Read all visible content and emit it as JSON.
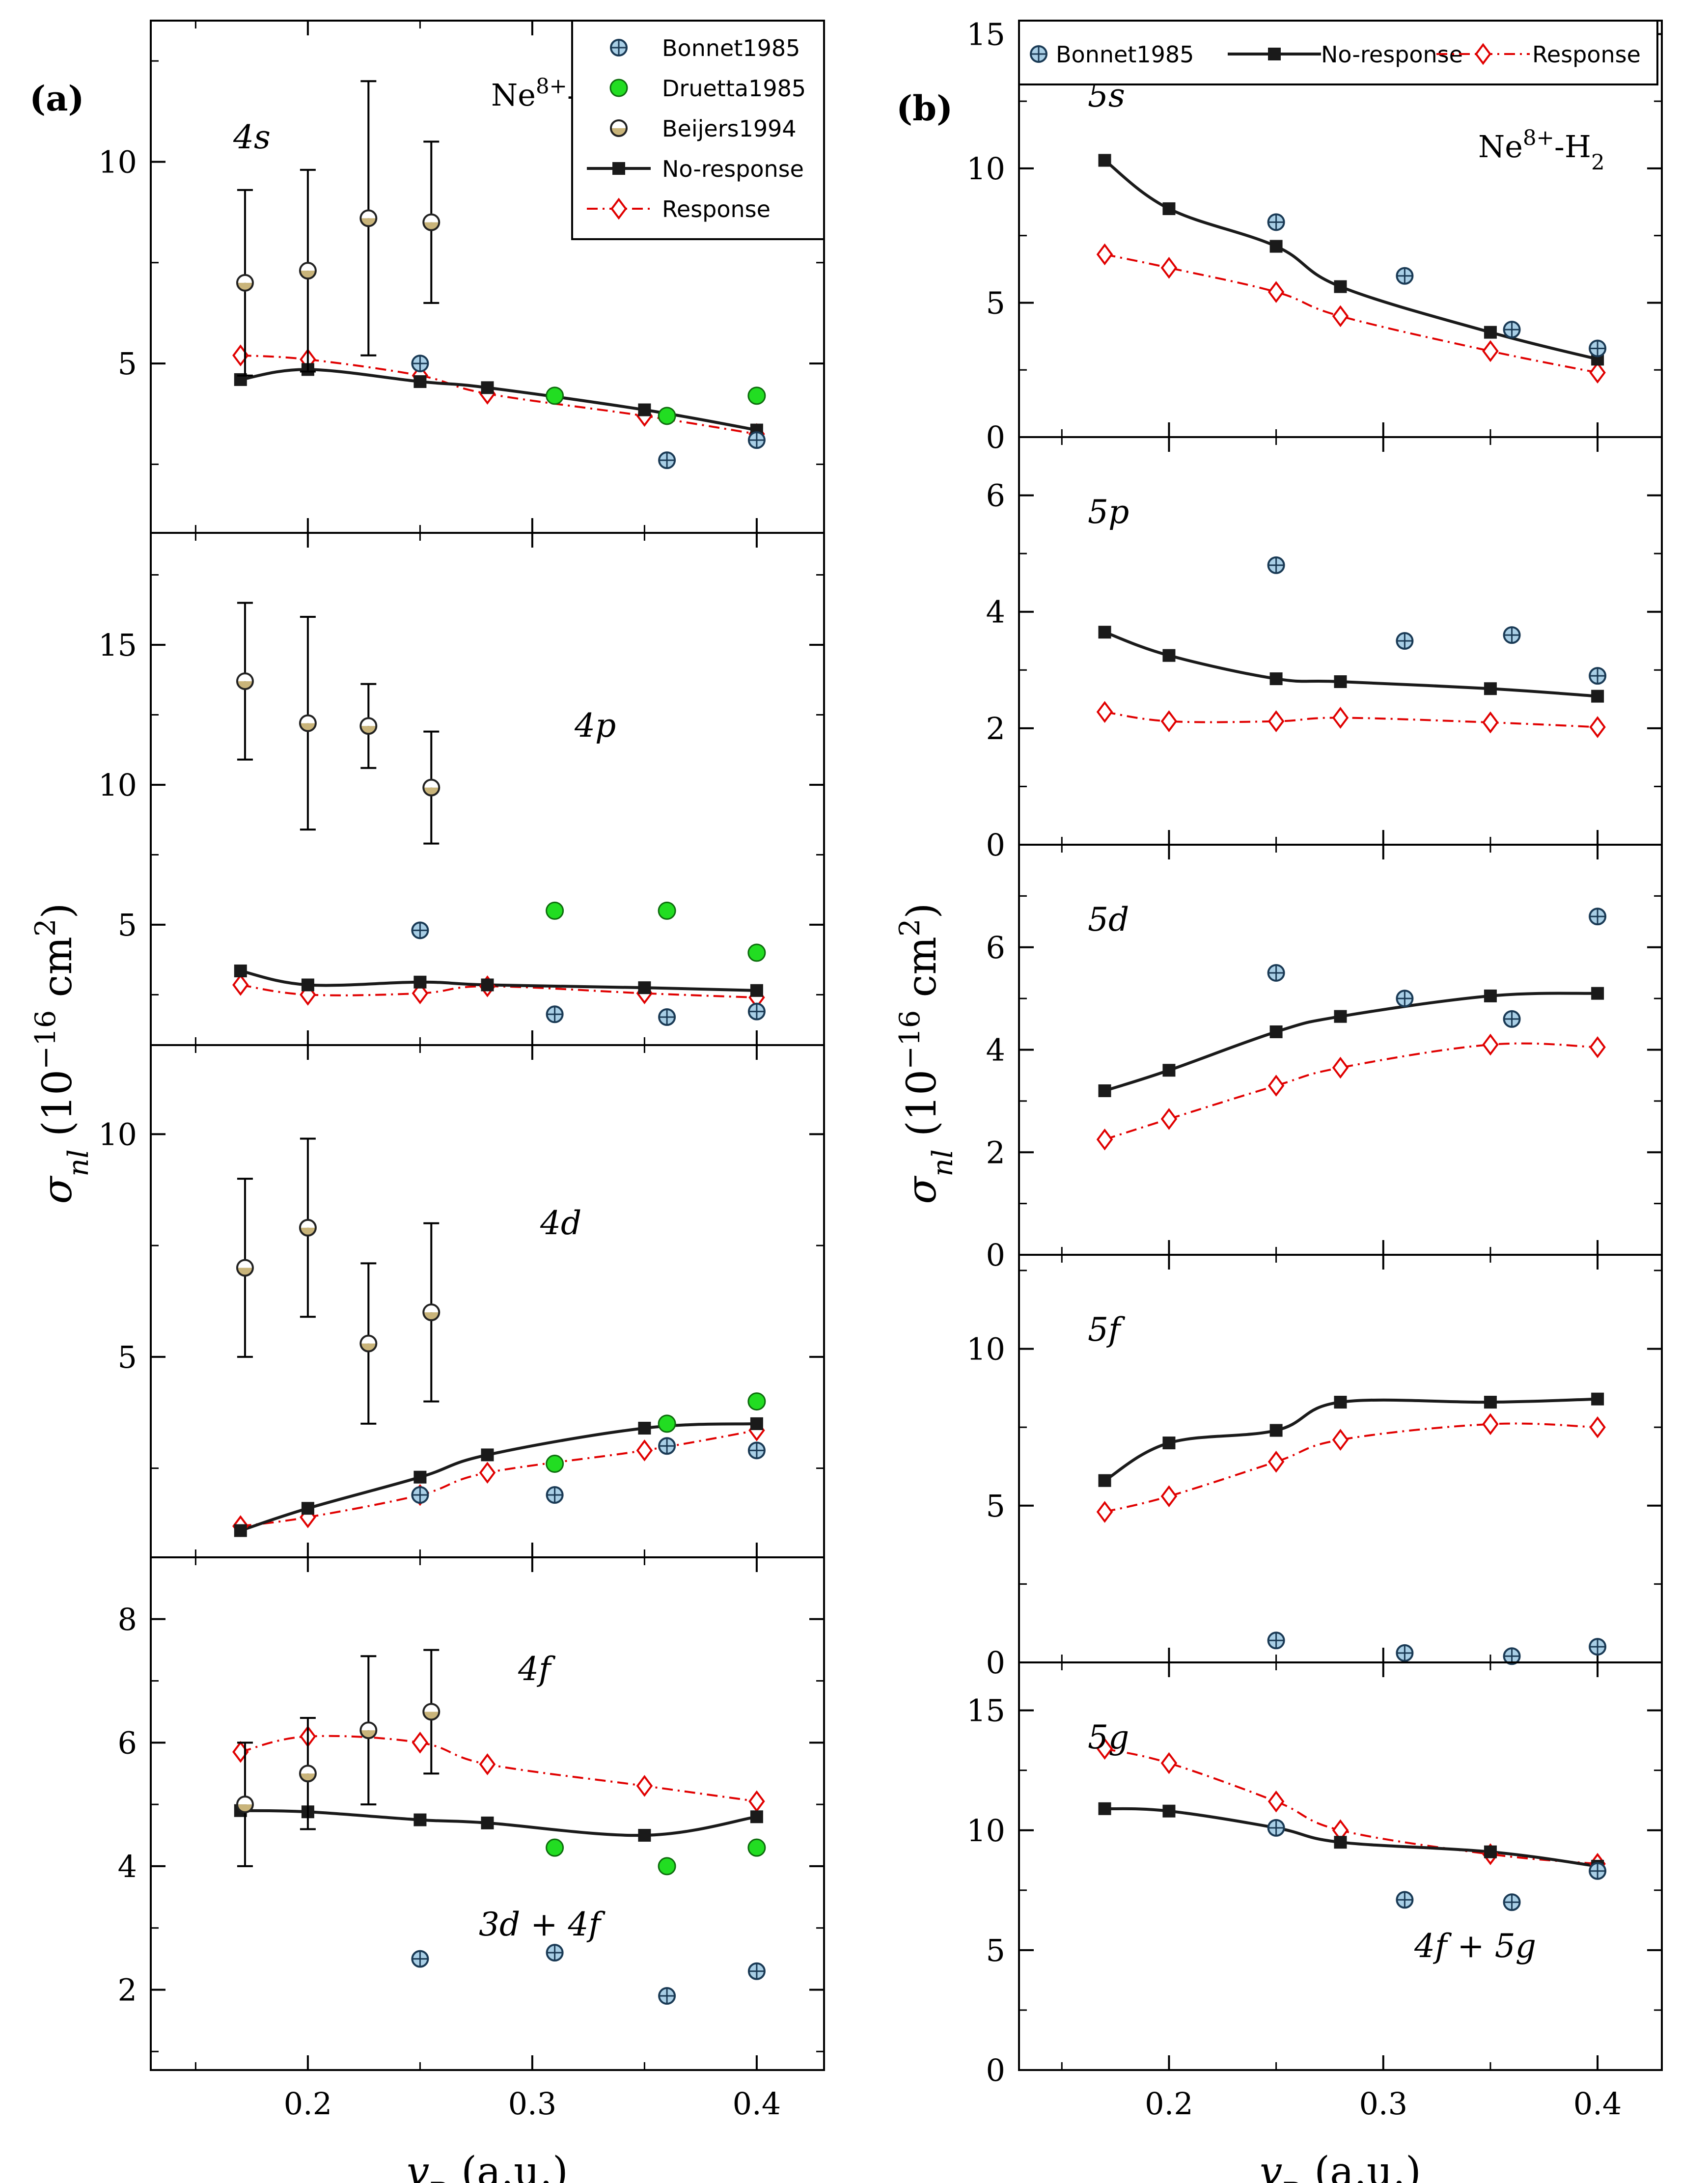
{
  "colors": {
    "no_response": "#1a1a1a",
    "response": "#e00000",
    "bonnet_fill": "#a9cfe6",
    "druetta_fill": "#22dd22",
    "beijers_top": "#ffffff",
    "beijers_bottom": "#c9b47a"
  },
  "axis": {
    "xlabel_main": "v",
    "xlabel_sub": "P",
    "xlabel_unit": " (a.u.)",
    "ylabel_main": "σ",
    "ylabel_sub": "nl",
    "ylabel_unit_open": " (10",
    "ylabel_exp": "−16",
    "ylabel_unit_mid": " cm",
    "ylabel_exp2": "2",
    "ylabel_close": ")"
  },
  "legend_a": [
    "Bonnet1985",
    "Druetta1985",
    "Beijers1994",
    "No-response",
    "Response"
  ],
  "legend_b": [
    "Bonnet1985",
    "No-response",
    "Response"
  ],
  "chart_data": [
    {
      "figure": "(a)",
      "system_base": "Ne",
      "system_sup": "8+",
      "system_tail": "-He",
      "type": "scatter+line",
      "xlabel": "vP (a.u.)",
      "ylabel": "σnl (10−16 cm2)",
      "xlim": [
        0.13,
        0.43
      ],
      "xticks": [
        0.2,
        0.3,
        0.4
      ],
      "panels": [
        {
          "label": "4s",
          "ylim": [
            0.8,
            13.5
          ],
          "yticks": [
            5,
            10
          ],
          "no_response": {
            "x": [
              0.17,
              0.2,
              0.25,
              0.28,
              0.35,
              0.4
            ],
            "y": [
              4.6,
              4.85,
              4.55,
              4.4,
              3.85,
              3.35
            ]
          },
          "response": {
            "x": [
              0.17,
              0.2,
              0.25,
              0.28,
              0.35,
              0.4
            ],
            "y": [
              5.2,
              5.1,
              4.7,
              4.25,
              3.7,
              3.25
            ]
          },
          "bonnet1985": {
            "x": [
              0.25,
              0.36,
              0.4
            ],
            "y": [
              5.0,
              2.6,
              3.1
            ]
          },
          "druetta1985": {
            "x": [
              0.31,
              0.36,
              0.4
            ],
            "y": [
              4.2,
              3.7,
              4.2
            ]
          },
          "beijers1994": {
            "x": [
              0.172,
              0.2,
              0.227,
              0.255
            ],
            "y": [
              7.0,
              7.3,
              8.6,
              8.5
            ],
            "yerr": [
              2.3,
              2.5,
              3.4,
              2.0
            ]
          }
        },
        {
          "label": "4p",
          "ylim": [
            0.7,
            19.0
          ],
          "yticks": [
            5,
            10,
            15
          ],
          "no_response": {
            "x": [
              0.17,
              0.2,
              0.25,
              0.28,
              0.35,
              0.4
            ],
            "y": [
              3.35,
              2.85,
              2.95,
              2.85,
              2.75,
              2.65
            ]
          },
          "response": {
            "x": [
              0.17,
              0.2,
              0.25,
              0.28,
              0.35,
              0.4
            ],
            "y": [
              2.85,
              2.5,
              2.55,
              2.8,
              2.55,
              2.4
            ]
          },
          "bonnet1985": {
            "x": [
              0.25,
              0.31,
              0.36,
              0.4
            ],
            "y": [
              4.8,
              1.8,
              1.7,
              1.9
            ]
          },
          "druetta1985": {
            "x": [
              0.31,
              0.36,
              0.4
            ],
            "y": [
              5.5,
              5.5,
              4.0
            ]
          },
          "beijers1994": {
            "x": [
              0.172,
              0.2,
              0.227,
              0.255
            ],
            "y": [
              13.7,
              12.2,
              12.1,
              9.9
            ],
            "yerr": [
              2.8,
              3.8,
              1.5,
              2.0
            ]
          }
        },
        {
          "label": "4d",
          "ylim": [
            0.5,
            12.0
          ],
          "yticks": [
            5,
            10
          ],
          "no_response": {
            "x": [
              0.17,
              0.2,
              0.25,
              0.28,
              0.35,
              0.4
            ],
            "y": [
              1.1,
              1.6,
              2.3,
              2.8,
              3.4,
              3.5
            ]
          },
          "response": {
            "x": [
              0.17,
              0.2,
              0.25,
              0.28,
              0.35,
              0.4
            ],
            "y": [
              1.2,
              1.4,
              1.9,
              2.4,
              2.9,
              3.35
            ]
          },
          "bonnet1985": {
            "x": [
              0.25,
              0.31,
              0.36,
              0.4
            ],
            "y": [
              1.9,
              1.9,
              3.0,
              2.9
            ]
          },
          "druetta1985": {
            "x": [
              0.31,
              0.36,
              0.4
            ],
            "y": [
              2.6,
              3.5,
              4.0
            ]
          },
          "beijers1994": {
            "x": [
              0.172,
              0.2,
              0.227,
              0.255
            ],
            "y": [
              7.0,
              7.9,
              5.3,
              6.0
            ],
            "yerr": [
              2.0,
              2.0,
              1.8,
              2.0
            ]
          }
        },
        {
          "label": "4f",
          "label2": "3d + 4f",
          "ylim": [
            0.7,
            9.0
          ],
          "yticks": [
            2,
            4,
            6,
            8
          ],
          "no_response": {
            "x": [
              0.17,
              0.2,
              0.25,
              0.28,
              0.35,
              0.4
            ],
            "y": [
              4.9,
              4.88,
              4.75,
              4.7,
              4.5,
              4.8
            ]
          },
          "response": {
            "x": [
              0.17,
              0.2,
              0.25,
              0.28,
              0.35,
              0.4
            ],
            "y": [
              5.85,
              6.1,
              6.0,
              5.65,
              5.3,
              5.05
            ]
          },
          "bonnet1985": {
            "x": [
              0.25,
              0.31,
              0.36,
              0.4
            ],
            "y": [
              2.5,
              2.6,
              1.9,
              2.3
            ]
          },
          "druetta1985": {
            "x": [
              0.31,
              0.36,
              0.4
            ],
            "y": [
              4.3,
              4.0,
              4.3
            ]
          },
          "beijers1994": {
            "x": [
              0.172,
              0.2,
              0.227,
              0.255
            ],
            "y": [
              5.0,
              5.5,
              6.2,
              6.5
            ],
            "yerr": [
              1.0,
              0.9,
              1.2,
              1.0
            ]
          }
        }
      ]
    },
    {
      "figure": "(b)",
      "system_base": "Ne",
      "system_sup": "8+",
      "system_tail": "-H",
      "system_sub": "2",
      "type": "scatter+line",
      "xlabel": "vP (a.u.)",
      "ylabel": "σnl (10−16 cm2)",
      "xlim": [
        0.13,
        0.43
      ],
      "xticks": [
        0.2,
        0.3,
        0.4
      ],
      "panels": [
        {
          "label": "5s",
          "ylim": [
            0,
            15.5
          ],
          "yticks": [
            0,
            5,
            10,
            15
          ],
          "no_response": {
            "x": [
              0.17,
              0.2,
              0.25,
              0.28,
              0.35,
              0.4
            ],
            "y": [
              10.3,
              8.5,
              7.1,
              5.6,
              3.9,
              2.9
            ]
          },
          "response": {
            "x": [
              0.17,
              0.2,
              0.25,
              0.28,
              0.35,
              0.4
            ],
            "y": [
              6.8,
              6.3,
              5.4,
              4.5,
              3.2,
              2.4
            ]
          },
          "bonnet1985": {
            "x": [
              0.25,
              0.31,
              0.36,
              0.4
            ],
            "y": [
              8.0,
              6.0,
              4.0,
              3.3
            ]
          }
        },
        {
          "label": "5p",
          "ylim": [
            0,
            7.0
          ],
          "yticks": [
            0,
            2,
            4,
            6
          ],
          "no_response": {
            "x": [
              0.17,
              0.2,
              0.25,
              0.28,
              0.35,
              0.4
            ],
            "y": [
              3.65,
              3.25,
              2.85,
              2.8,
              2.68,
              2.55
            ]
          },
          "response": {
            "x": [
              0.17,
              0.2,
              0.25,
              0.28,
              0.35,
              0.4
            ],
            "y": [
              2.28,
              2.12,
              2.12,
              2.18,
              2.1,
              2.02
            ]
          },
          "bonnet1985": {
            "x": [
              0.25,
              0.31,
              0.36,
              0.4
            ],
            "y": [
              4.8,
              3.5,
              3.6,
              2.9
            ]
          }
        },
        {
          "label": "5d",
          "ylim": [
            0,
            8.0
          ],
          "yticks": [
            0,
            2,
            4,
            6
          ],
          "no_response": {
            "x": [
              0.17,
              0.2,
              0.25,
              0.28,
              0.35,
              0.4
            ],
            "y": [
              3.2,
              3.6,
              4.35,
              4.65,
              5.05,
              5.1
            ]
          },
          "response": {
            "x": [
              0.17,
              0.2,
              0.25,
              0.28,
              0.35,
              0.4
            ],
            "y": [
              2.25,
              2.65,
              3.3,
              3.65,
              4.1,
              4.05
            ]
          },
          "bonnet1985": {
            "x": [
              0.25,
              0.31,
              0.36,
              0.4
            ],
            "y": [
              5.5,
              5.0,
              4.6,
              6.6
            ]
          }
        },
        {
          "label": "5f",
          "ylim": [
            0,
            13.0
          ],
          "yticks": [
            0,
            5,
            10
          ],
          "no_response": {
            "x": [
              0.17,
              0.2,
              0.25,
              0.28,
              0.35,
              0.4
            ],
            "y": [
              5.8,
              7.0,
              7.4,
              8.3,
              8.3,
              8.4
            ]
          },
          "response": {
            "x": [
              0.17,
              0.2,
              0.25,
              0.28,
              0.35,
              0.4
            ],
            "y": [
              4.8,
              5.3,
              6.4,
              7.1,
              7.6,
              7.5
            ]
          },
          "bonnet1985": {
            "x": [
              0.25,
              0.31,
              0.36,
              0.4
            ],
            "y": [
              0.7,
              0.3,
              0.2,
              0.5
            ]
          }
        },
        {
          "label": "5g",
          "label2": "4f + 5g",
          "ylim": [
            0,
            17.0
          ],
          "yticks": [
            0,
            5,
            10,
            15
          ],
          "no_response": {
            "x": [
              0.17,
              0.2,
              0.25,
              0.28,
              0.35,
              0.4
            ],
            "y": [
              10.9,
              10.8,
              10.1,
              9.5,
              9.1,
              8.5
            ]
          },
          "response": {
            "x": [
              0.17,
              0.2,
              0.25,
              0.28,
              0.35,
              0.4
            ],
            "y": [
              13.4,
              12.8,
              11.2,
              10.0,
              9.0,
              8.6
            ]
          },
          "bonnet1985": {
            "x": [
              0.25,
              0.31,
              0.36,
              0.4
            ],
            "y": [
              10.1,
              7.1,
              7.0,
              8.3
            ]
          }
        }
      ]
    }
  ]
}
